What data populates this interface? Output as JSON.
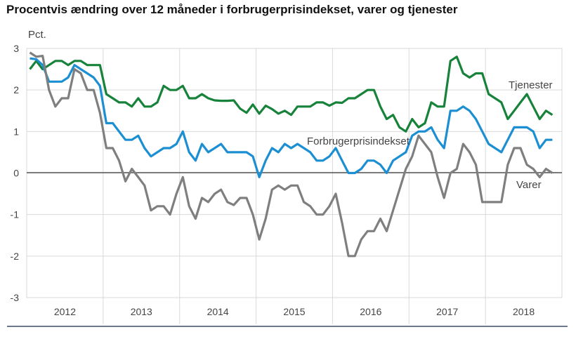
{
  "chart_data": {
    "type": "line",
    "title": "Procentvis ændring over 12 måneder i forbrugerprisindekset, varer og tjenester",
    "ylabel": "Pct.",
    "xlabel": "",
    "ylim": [
      -3,
      3
    ],
    "yticks": [
      "3",
      "2",
      "1",
      "0",
      "-1",
      "-2",
      "-3"
    ],
    "year_labels": [
      "2012",
      "2013",
      "2014",
      "2015",
      "2016",
      "2017",
      "2018"
    ],
    "x_start": "2012-01",
    "frequency": "monthly",
    "grid": true,
    "series": [
      {
        "name": "Tjenester",
        "color": "#17823a",
        "values": [
          2.5,
          2.7,
          2.5,
          2.6,
          2.7,
          2.7,
          2.6,
          2.7,
          2.7,
          2.6,
          2.6,
          2.6,
          1.9,
          1.8,
          1.7,
          1.7,
          1.6,
          1.8,
          1.6,
          1.6,
          1.7,
          2.1,
          2.0,
          2.0,
          2.1,
          1.8,
          1.8,
          1.9,
          1.8,
          1.75,
          1.74,
          1.74,
          1.75,
          1.55,
          1.45,
          1.65,
          1.43,
          1.62,
          1.54,
          1.43,
          1.5,
          1.4,
          1.6,
          1.6,
          1.6,
          1.7,
          1.7,
          1.62,
          1.7,
          1.69,
          1.8,
          1.8,
          1.9,
          2.0,
          2.0,
          1.6,
          1.3,
          1.4,
          1.1,
          1.0,
          1.3,
          1.1,
          1.2,
          1.7,
          1.6,
          1.6,
          2.7,
          2.8,
          2.4,
          2.3,
          2.4,
          2.4,
          1.9,
          1.8,
          1.7,
          1.3,
          1.5,
          1.7,
          1.9,
          1.6,
          1.3,
          1.5,
          1.4
        ]
      },
      {
        "name": "Forbrugerprisindekset",
        "color": "#1b8fd2",
        "values": [
          2.76,
          2.74,
          2.6,
          2.2,
          2.2,
          2.2,
          2.3,
          2.6,
          2.5,
          2.4,
          2.3,
          2.1,
          1.2,
          1.2,
          1.0,
          0.8,
          0.8,
          0.9,
          0.6,
          0.4,
          0.5,
          0.6,
          0.6,
          0.7,
          1.0,
          0.5,
          0.3,
          0.7,
          0.5,
          0.6,
          0.7,
          0.5,
          0.5,
          0.5,
          0.5,
          0.4,
          -0.1,
          0.3,
          0.6,
          0.5,
          0.7,
          0.6,
          0.7,
          0.6,
          0.5,
          0.3,
          0.3,
          0.4,
          0.6,
          0.3,
          0.0,
          0.0,
          0.1,
          0.3,
          0.3,
          0.2,
          0.0,
          0.3,
          0.4,
          0.5,
          0.9,
          1.0,
          1.0,
          1.1,
          0.8,
          0.6,
          1.5,
          1.5,
          1.6,
          1.5,
          1.3,
          1.0,
          0.7,
          0.6,
          0.5,
          0.8,
          1.1,
          1.1,
          1.1,
          1.0,
          0.6,
          0.8,
          0.8
        ]
      },
      {
        "name": "Varer",
        "color": "#7f7f7f",
        "values": [
          2.9,
          2.8,
          2.82,
          2.0,
          1.6,
          1.8,
          1.8,
          2.5,
          2.4,
          2.0,
          2.0,
          1.45,
          0.6,
          0.6,
          0.3,
          -0.2,
          0.1,
          -0.1,
          -0.3,
          -0.9,
          -0.8,
          -0.8,
          -1.0,
          -0.5,
          -0.1,
          -0.8,
          -1.1,
          -0.6,
          -0.7,
          -0.5,
          -0.4,
          -0.7,
          -0.77,
          -0.6,
          -0.6,
          -1.0,
          -1.6,
          -1.1,
          -0.4,
          -0.3,
          -0.4,
          -0.3,
          -0.3,
          -0.7,
          -0.8,
          -1.0,
          -1.0,
          -0.8,
          -0.5,
          -1.2,
          -2.0,
          -2.0,
          -1.6,
          -1.4,
          -1.4,
          -1.1,
          -1.4,
          -0.9,
          -0.4,
          0.1,
          0.4,
          0.9,
          0.7,
          0.5,
          -0.1,
          -0.6,
          0.0,
          0.1,
          0.7,
          0.5,
          0.2,
          -0.7,
          -0.7,
          -0.7,
          -0.7,
          0.2,
          0.6,
          0.6,
          0.2,
          0.1,
          -0.1,
          0.1,
          0.0
        ]
      }
    ]
  }
}
